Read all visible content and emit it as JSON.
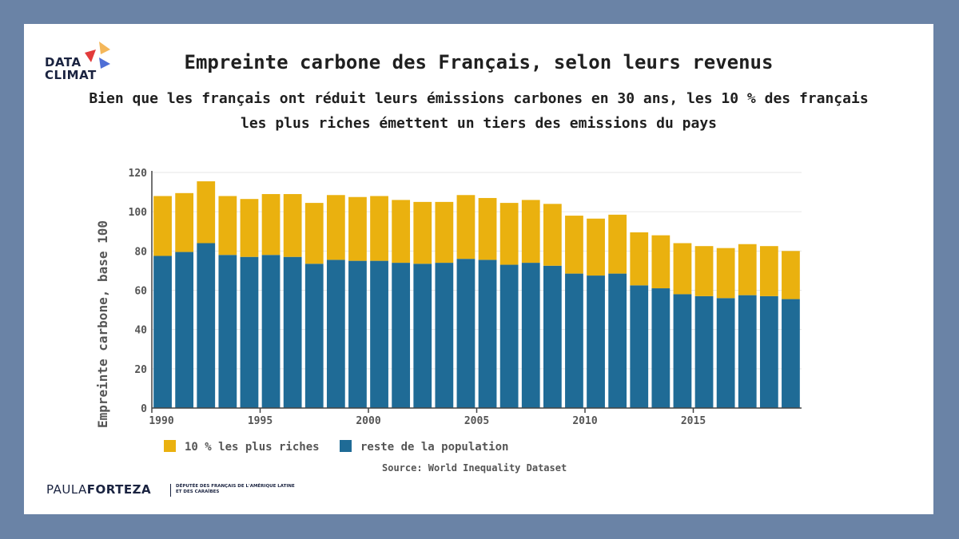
{
  "logo": {
    "line1": "DATA",
    "line2": "CLIMAT"
  },
  "title": "Empreinte carbone des Français, selon leurs revenus",
  "subtitle_line1": "Bien que les français ont réduit leurs émissions carbones en 30 ans, les 10 % des français",
  "subtitle_line2": "les plus riches émettent un tiers des emissions du pays",
  "chart_data": {
    "type": "bar",
    "stacked": true,
    "title": "Empreinte carbone des Français, selon leurs revenus",
    "ylabel": "Empreinte carbone, base 100",
    "xlabel": "",
    "ylim": [
      0,
      120
    ],
    "yticks": [
      0,
      20,
      40,
      60,
      80,
      100,
      120
    ],
    "xticks": [
      1990,
      1995,
      2000,
      2005,
      2010,
      2015
    ],
    "grid": true,
    "legend_position": "bottom-left",
    "categories": [
      1990,
      1991,
      1992,
      1993,
      1994,
      1995,
      1996,
      1997,
      1998,
      1999,
      2000,
      2001,
      2002,
      2003,
      2004,
      2005,
      2006,
      2007,
      2008,
      2009,
      2010,
      2011,
      2012,
      2013,
      2014,
      2015,
      2016,
      2017,
      2018,
      2019
    ],
    "series": [
      {
        "name": "reste de la population",
        "color": "#1f6b96",
        "values": [
          77.5,
          79.5,
          84,
          78,
          77,
          78,
          77,
          73.5,
          75.5,
          75,
          75,
          74,
          73.5,
          74,
          76,
          75.5,
          73,
          74,
          72.5,
          68.5,
          67.5,
          68.5,
          62.5,
          61,
          58,
          57,
          56,
          57.5,
          57,
          55.5
        ]
      },
      {
        "name": "10 % les plus riches",
        "color": "#eab10f",
        "values": [
          30.5,
          30,
          31.5,
          30,
          29.5,
          31,
          32,
          31,
          33,
          32.5,
          33,
          32,
          31.5,
          31,
          32.5,
          31.5,
          31.5,
          32,
          31.5,
          29.5,
          29,
          30,
          27,
          27,
          26,
          25.5,
          25.5,
          26,
          25.5,
          24.5
        ]
      }
    ],
    "legend": [
      "10 % les plus riches",
      "reste de la population"
    ],
    "source": "Source: World Inequality Dataset"
  },
  "footer": {
    "name_light": "PAULA",
    "name_bold": "FORTEZA",
    "desc_line1": "DÉPUTÉE DES FRANÇAIS DE L'AMÉRIQUE LATINE",
    "desc_line2": "ET DES CARAÏBES"
  }
}
